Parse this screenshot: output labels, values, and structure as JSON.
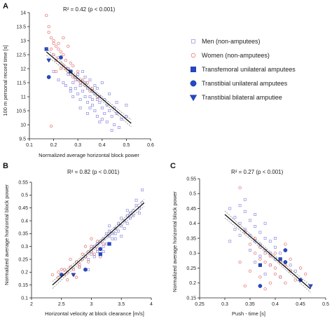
{
  "colors": {
    "men": "#8f8fe0",
    "women": "#e46a6a",
    "amputee": "#2448c8",
    "fit": "#111111",
    "ci": "#777777"
  },
  "legend": {
    "items": [
      {
        "label": "Men (non-amputees)",
        "marker": "square-open",
        "color": "#8f8fe0"
      },
      {
        "label": "Women (non-amputees)",
        "marker": "circle-open",
        "color": "#e46a6a"
      },
      {
        "label": "Transfemoral unilateral amputees",
        "marker": "square-filled",
        "color": "#2448c8"
      },
      {
        "label": "Transtibial unilateral amputees",
        "marker": "circle-filled",
        "color": "#2448c8"
      },
      {
        "label": "Transtibial bilateral amputiee",
        "marker": "triangle-down-filled",
        "color": "#2448c8"
      }
    ]
  },
  "chart_data": [
    {
      "type": "scatter",
      "panel": "A",
      "annotation": "R² = 0.42 (p < 0.001)",
      "xlabel": "Normalized average horizontal block power",
      "ylabel": "100 m personal record time [s]",
      "xlim": [
        0.1,
        0.6
      ],
      "ylim": [
        9.5,
        14
      ],
      "xticks": [
        "0.1",
        "0.2",
        "0.3",
        "0.4",
        "0.5",
        "0.6"
      ],
      "yticks": [
        "9.5",
        "10",
        "10.5",
        "11",
        "11.5",
        "12",
        "12.5",
        "13",
        "13.5",
        "14"
      ],
      "fit": {
        "x": [
          0.17,
          0.52
        ],
        "y": [
          12.6,
          10.05
        ]
      },
      "series": [
        {
          "name": "Men (non-amputees)",
          "marker": "square-open",
          "x": [
            0.2,
            0.22,
            0.24,
            0.25,
            0.26,
            0.27,
            0.28,
            0.28,
            0.29,
            0.3,
            0.3,
            0.31,
            0.31,
            0.32,
            0.33,
            0.33,
            0.34,
            0.34,
            0.35,
            0.35,
            0.36,
            0.36,
            0.37,
            0.37,
            0.38,
            0.38,
            0.39,
            0.39,
            0.4,
            0.4,
            0.41,
            0.41,
            0.42,
            0.42,
            0.43,
            0.44,
            0.45,
            0.45,
            0.46,
            0.47,
            0.48,
            0.5,
            0.26,
            0.29,
            0.32,
            0.35,
            0.37,
            0.4,
            0.43,
            0.46,
            0.5,
            0.34,
            0.27,
            0.31,
            0.39,
            0.44,
            0.36,
            0.3,
            0.33,
            0.38
          ],
          "y": [
            11.9,
            11.6,
            11.5,
            11.4,
            11.8,
            11.2,
            11.5,
            11.0,
            11.3,
            11.1,
            11.6,
            10.9,
            11.4,
            11.2,
            11.0,
            11.5,
            10.8,
            11.3,
            11.0,
            10.6,
            11.2,
            10.7,
            11.1,
            10.5,
            10.9,
            10.3,
            10.8,
            11.0,
            10.6,
            10.2,
            10.9,
            10.4,
            10.7,
            10.1,
            10.5,
            10.3,
            10.6,
            10.0,
            10.4,
            9.9,
            10.2,
            10.3,
            12.0,
            11.7,
            11.9,
            11.6,
            11.4,
            11.5,
            11.1,
            10.8,
            10.7,
            10.4,
            11.3,
            10.6,
            10.1,
            9.8,
            10.9,
            11.8,
            11.7,
            11.3
          ]
        },
        {
          "name": "Women (non-amputees)",
          "marker": "circle-open",
          "x": [
            0.17,
            0.18,
            0.19,
            0.19,
            0.2,
            0.2,
            0.21,
            0.21,
            0.22,
            0.22,
            0.23,
            0.23,
            0.24,
            0.24,
            0.25,
            0.25,
            0.26,
            0.27,
            0.27,
            0.28,
            0.28,
            0.29,
            0.3,
            0.31,
            0.32,
            0.33,
            0.34,
            0.35,
            0.36,
            0.38,
            0.18,
            0.2,
            0.22,
            0.24,
            0.26,
            0.19,
            0.23,
            0.21
          ],
          "y": [
            13.9,
            13.3,
            13.1,
            12.7,
            12.9,
            12.5,
            12.8,
            12.3,
            12.4,
            12.9,
            12.2,
            12.6,
            12.1,
            12.5,
            12.0,
            12.3,
            11.9,
            12.2,
            11.8,
            11.7,
            12.1,
            11.6,
            11.9,
            11.5,
            11.6,
            11.4,
            11.5,
            11.2,
            11.3,
            11.0,
            13.5,
            13.0,
            12.7,
            13.1,
            12.8,
            9.95,
            12.0,
            11.9
          ]
        },
        {
          "name": "Transfemoral unilateral amputees",
          "marker": "square-filled",
          "x": [
            0.17,
            0.27
          ],
          "y": [
            12.7,
            11.9
          ]
        },
        {
          "name": "Transtibial unilateral amputees",
          "marker": "circle-filled",
          "x": [
            0.18,
            0.23
          ],
          "y": [
            11.7,
            12.4
          ]
        },
        {
          "name": "Transtibial bilateral amputiee",
          "marker": "triangle-down-filled",
          "x": [
            0.18
          ],
          "y": [
            12.3
          ]
        }
      ]
    },
    {
      "type": "scatter",
      "panel": "B",
      "annotation": "R² = 0.82 (p < 0.001)",
      "xlabel": "Horizontal velocity at block clearance [m/s]",
      "ylabel": "Normalized average horizontal block power",
      "xlim": [
        2,
        4
      ],
      "ylim": [
        0.1,
        0.55
      ],
      "xticks": [
        "2",
        "2.5",
        "3",
        "3.5",
        "4"
      ],
      "yticks": [
        "0.1",
        "0.15",
        "0.2",
        "0.25",
        "0.3",
        "0.35",
        "0.4",
        "0.45",
        "0.5",
        "0.55"
      ],
      "fit": {
        "x": [
          2.35,
          3.88
        ],
        "y": [
          0.15,
          0.47
        ]
      },
      "series": [
        {
          "name": "Men (non-amputees)",
          "marker": "square-open",
          "x": [
            2.8,
            2.9,
            2.95,
            3.0,
            3.05,
            3.1,
            3.15,
            3.2,
            3.2,
            3.25,
            3.3,
            3.3,
            3.35,
            3.4,
            3.4,
            3.45,
            3.5,
            3.5,
            3.55,
            3.6,
            3.6,
            3.65,
            3.7,
            3.75,
            3.8,
            3.85,
            3.05,
            3.15,
            3.25,
            3.35,
            3.45,
            3.55,
            3.65,
            3.1,
            3.2,
            3.3,
            3.4,
            3.5,
            3.6,
            3.7,
            3.75,
            3.0,
            2.95,
            3.85,
            3.8
          ],
          "y": [
            0.22,
            0.26,
            0.25,
            0.27,
            0.3,
            0.28,
            0.32,
            0.3,
            0.33,
            0.31,
            0.34,
            0.36,
            0.35,
            0.37,
            0.33,
            0.39,
            0.38,
            0.41,
            0.4,
            0.42,
            0.39,
            0.43,
            0.44,
            0.46,
            0.45,
            0.52,
            0.26,
            0.29,
            0.35,
            0.33,
            0.36,
            0.37,
            0.41,
            0.31,
            0.28,
            0.38,
            0.35,
            0.34,
            0.44,
            0.42,
            0.48,
            0.29,
            0.21,
            0.47,
            0.43
          ]
        },
        {
          "name": "Women (non-amputees)",
          "marker": "circle-open",
          "x": [
            2.45,
            2.55,
            2.6,
            2.65,
            2.7,
            2.75,
            2.8,
            2.85,
            2.85,
            2.9,
            2.95,
            3.0,
            3.0,
            3.05,
            3.1,
            2.5,
            2.6,
            2.7,
            2.8,
            2.9,
            3.1,
            3.15,
            2.55,
            2.75,
            3.0,
            2.65,
            2.95,
            3.2,
            2.35,
            2.45
          ],
          "y": [
            0.18,
            0.19,
            0.2,
            0.22,
            0.21,
            0.24,
            0.23,
            0.25,
            0.27,
            0.26,
            0.24,
            0.28,
            0.3,
            0.27,
            0.29,
            0.21,
            0.17,
            0.19,
            0.22,
            0.3,
            0.32,
            0.26,
            0.21,
            0.18,
            0.33,
            0.25,
            0.28,
            0.31,
            0.19,
            0.2
          ]
        },
        {
          "name": "Transfemoral unilateral amputees",
          "marker": "square-filled",
          "x": [
            3.15,
            3.3
          ],
          "y": [
            0.27,
            0.31
          ]
        },
        {
          "name": "Transtibial unilateral amputees",
          "marker": "circle-filled",
          "x": [
            2.5,
            2.9,
            3.15
          ],
          "y": [
            0.19,
            0.21,
            0.29
          ]
        },
        {
          "name": "Transtibial bilateral amputiee",
          "marker": "triangle-down-filled",
          "x": [
            2.7
          ],
          "y": [
            0.19
          ]
        }
      ]
    },
    {
      "type": "scatter",
      "panel": "C",
      "annotation": "R² = 0.27 (p < 0.001)",
      "xlabel": "Push - time [s]",
      "ylabel": "Normalized average horizontal block power",
      "xlim": [
        0.25,
        0.5
      ],
      "ylim": [
        0.15,
        0.55
      ],
      "xticks": [
        "0.25",
        "0.3",
        "0.35",
        "0.4",
        "0.45",
        "0.5"
      ],
      "yticks": [
        "0.15",
        "0.2",
        "0.25",
        "0.3",
        "0.35",
        "0.4",
        "0.45",
        "0.5",
        "0.55"
      ],
      "fit": {
        "x": [
          0.3,
          0.47
        ],
        "y": [
          0.43,
          0.18
        ]
      },
      "series": [
        {
          "name": "Men (non-amputees)",
          "marker": "square-open",
          "x": [
            0.31,
            0.32,
            0.33,
            0.33,
            0.34,
            0.34,
            0.35,
            0.35,
            0.36,
            0.36,
            0.37,
            0.37,
            0.38,
            0.38,
            0.39,
            0.39,
            0.4,
            0.4,
            0.41,
            0.42,
            0.32,
            0.34,
            0.36,
            0.38,
            0.4,
            0.35,
            0.37,
            0.39,
            0.33,
            0.41,
            0.43,
            0.31,
            0.36,
            0.38,
            0.44
          ],
          "y": [
            0.45,
            0.42,
            0.46,
            0.4,
            0.44,
            0.38,
            0.41,
            0.36,
            0.39,
            0.34,
            0.37,
            0.33,
            0.35,
            0.31,
            0.34,
            0.3,
            0.32,
            0.28,
            0.3,
            0.27,
            0.38,
            0.48,
            0.43,
            0.4,
            0.35,
            0.31,
            0.29,
            0.26,
            0.36,
            0.22,
            0.26,
            0.34,
            0.27,
            0.23,
            0.24
          ]
        },
        {
          "name": "Women (non-amputees)",
          "marker": "circle-open",
          "x": [
            0.33,
            0.34,
            0.35,
            0.36,
            0.36,
            0.37,
            0.37,
            0.38,
            0.38,
            0.39,
            0.39,
            0.4,
            0.4,
            0.41,
            0.41,
            0.42,
            0.42,
            0.43,
            0.44,
            0.45,
            0.35,
            0.37,
            0.39,
            0.33,
            0.4,
            0.43,
            0.46,
            0.34,
            0.38,
            0.42
          ],
          "y": [
            0.52,
            0.37,
            0.33,
            0.3,
            0.35,
            0.28,
            0.32,
            0.27,
            0.3,
            0.26,
            0.29,
            0.25,
            0.23,
            0.27,
            0.22,
            0.26,
            0.2,
            0.24,
            0.21,
            0.25,
            0.24,
            0.22,
            0.2,
            0.27,
            0.3,
            0.28,
            0.23,
            0.19,
            0.18,
            0.33
          ]
        },
        {
          "name": "Transfemoral unilateral amputees",
          "marker": "square-filled",
          "x": [
            0.37,
            0.41
          ],
          "y": [
            0.26,
            0.28
          ]
        },
        {
          "name": "Transtibial unilateral amputees",
          "marker": "circle-filled",
          "x": [
            0.37,
            0.42,
            0.42,
            0.45
          ],
          "y": [
            0.19,
            0.31,
            0.27,
            0.21
          ]
        },
        {
          "name": "Transtibial bilateral amputiee",
          "marker": "triangle-down-filled",
          "x": [
            0.47
          ],
          "y": [
            0.19
          ]
        }
      ]
    }
  ]
}
